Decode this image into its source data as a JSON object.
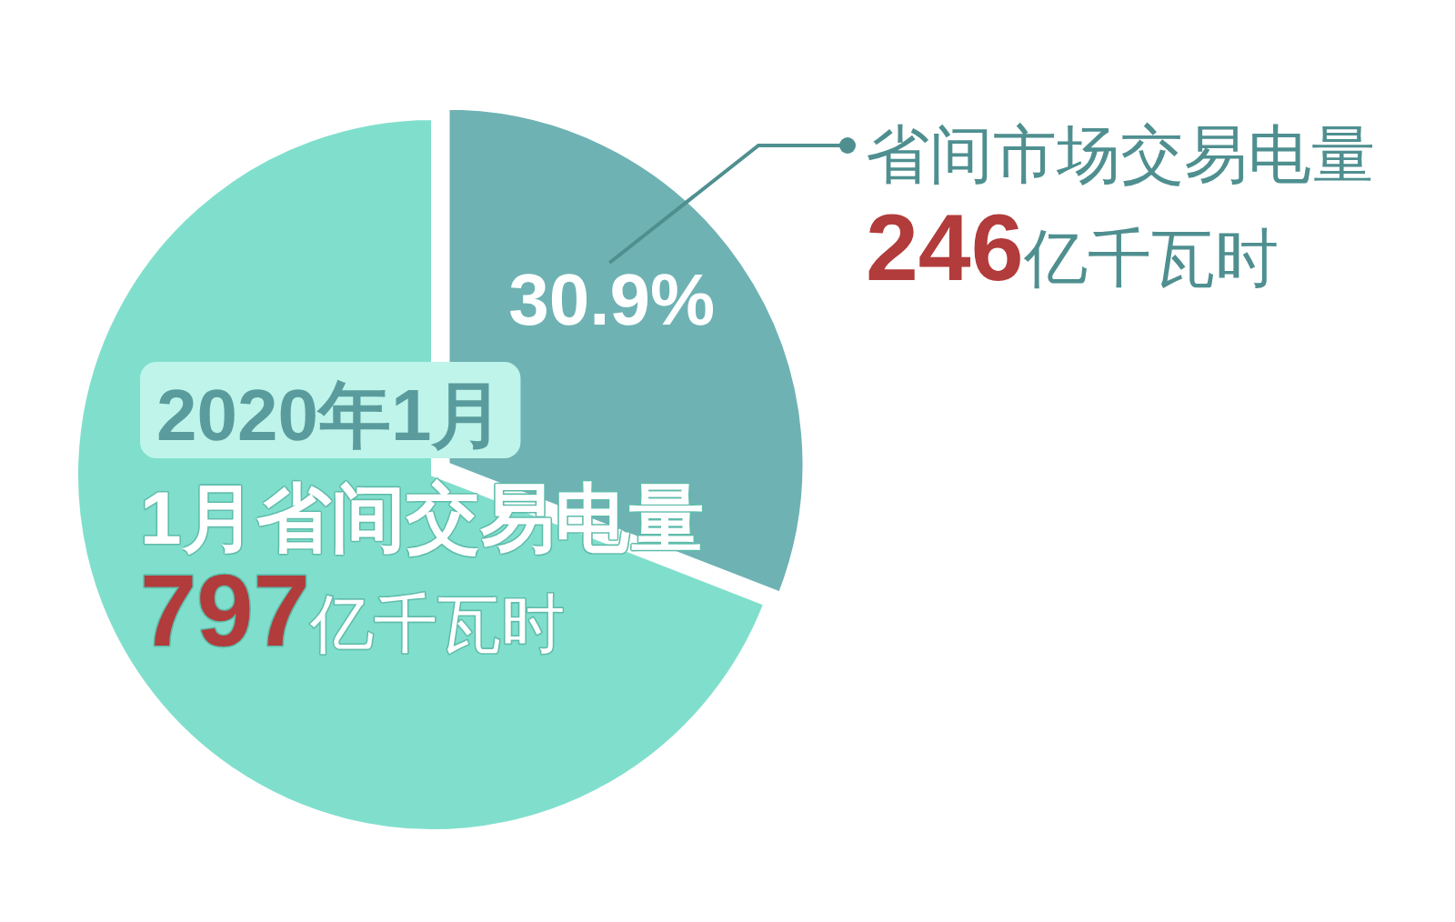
{
  "chart_data": {
    "type": "pie",
    "categories": [
      "省间市场交易电量",
      null
    ],
    "values": [
      30.9,
      69.1
    ],
    "colors": [
      "#6fb2b4",
      "#80dfcc"
    ],
    "value_labels": [
      "30.9%",
      null
    ],
    "annotations": [
      "246亿千瓦时",
      "2020年1月",
      "1月省间交易电量",
      "797亿千瓦时"
    ]
  }
}
